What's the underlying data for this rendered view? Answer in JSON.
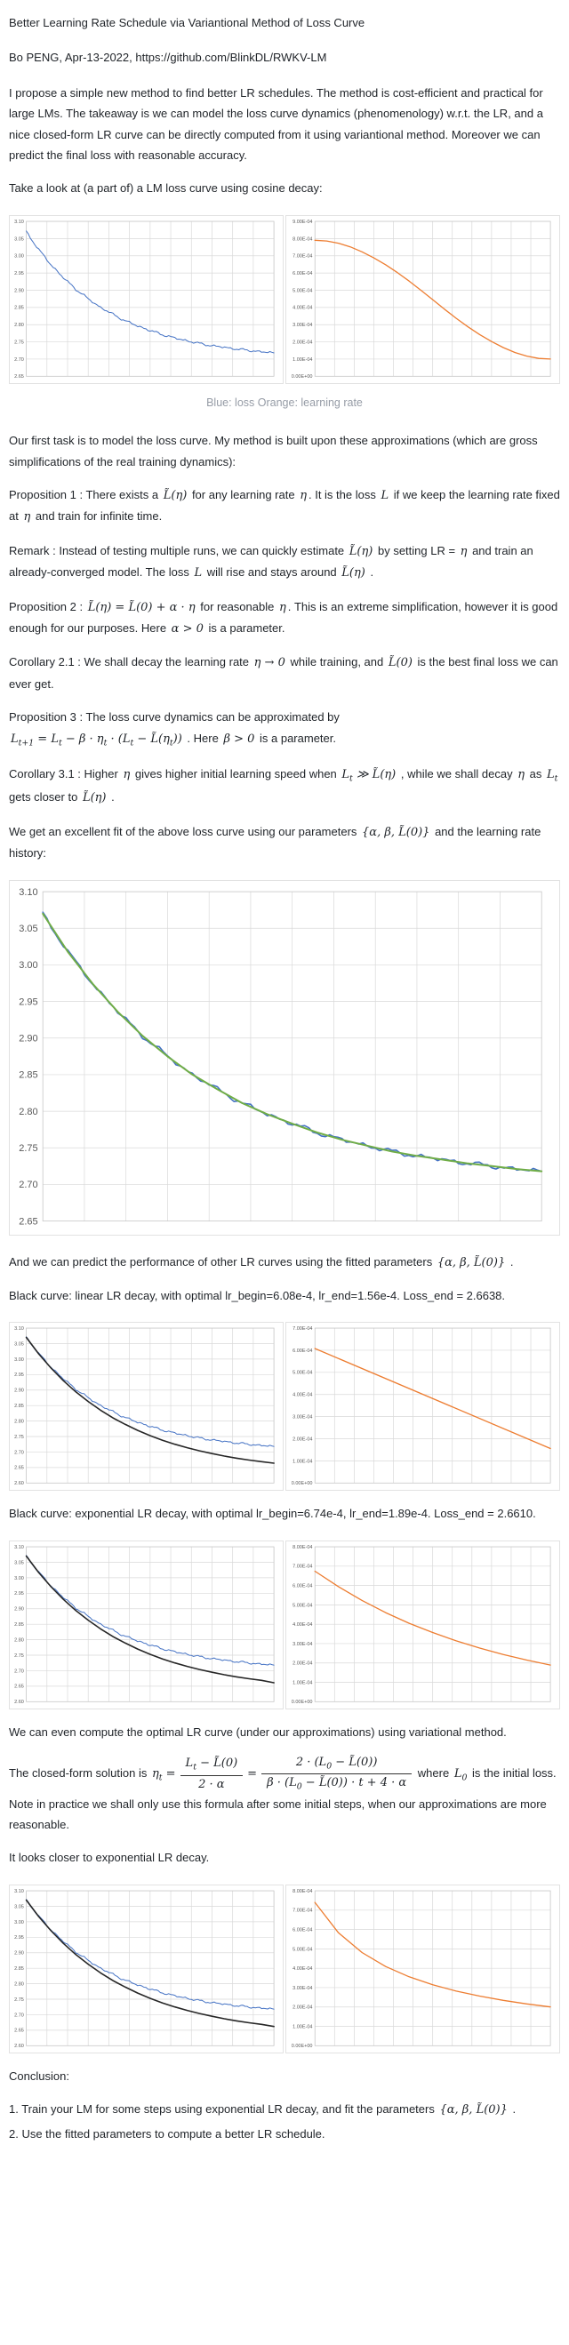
{
  "title": "Better Learning Rate Schedule via Variantional Method of Loss Curve",
  "byline": "Bo PENG, Apr-13-2022, https://github.com/BlinkDL/RWKV-LM",
  "caption": "Blue: loss Orange: learning rate",
  "paragraphs": {
    "intro": "I propose a simple new method to find better LR schedules. The method is cost-efficient and practical for large LMs. The takeaway is we can model the loss curve dynamics (phenomenology) w.r.t. the LR, and a nice closed-form LR curve can be directly computed from it using variantional method. Moreover we can predict the final loss with reasonable accuracy.",
    "take_look": "Take a look at (a part of) a LM loss curve using cosine decay:",
    "first_task": "Our first task is to model the loss curve. My method is built upon these approximations (which are gross simplifications of the real training dynamics):",
    "black_linear": "Black curve: linear LR decay, with optimal lr_begin=6.08e-4, lr_end=1.56e-4. Loss_end = 2.6638.",
    "black_exponential": "Black curve: exponential LR decay, with optimal lr_begin=6.74e-4, lr_end=1.89e-4. Loss_end = 2.6610.",
    "variational": "We can even compute the optimal LR curve (under our approximations) using variational method.",
    "closer": "It looks closer to exponential LR decay.",
    "conclusion_heading": "Conclusion:",
    "conclusion_2": "2. Use the fitted parameters to compute a better LR schedule."
  },
  "rich": {
    "prop1": [
      {
        "t": "Proposition 1 : There exists a "
      },
      {
        "m": "L̃(η)"
      },
      {
        "t": " for any learning rate "
      },
      {
        "m": "η"
      },
      {
        "t": ". It is the loss "
      },
      {
        "m": "L"
      },
      {
        "t": " if we keep the learning rate fixed at "
      },
      {
        "m": "η"
      },
      {
        "t": " and train for infinite time."
      }
    ],
    "remark": [
      {
        "t": "Remark : Instead of testing multiple runs, we can quickly estimate "
      },
      {
        "m": "L̃(η)"
      },
      {
        "t": " by setting LR = "
      },
      {
        "m": "η"
      },
      {
        "t": " and train an already-converged model. The loss "
      },
      {
        "m": "L"
      },
      {
        "t": " will rise and stays around "
      },
      {
        "m": "L̃(η)"
      },
      {
        "t": " ."
      }
    ],
    "prop2": [
      {
        "t": "Proposition 2 : "
      },
      {
        "m": "L̃(η) = L̃(0) + α · η"
      },
      {
        "t": " for reasonable "
      },
      {
        "m": "η"
      },
      {
        "t": ". This is an extreme simplification, however it is good enough for our purposes. Here "
      },
      {
        "m": "α > 0"
      },
      {
        "t": " is a parameter."
      }
    ],
    "cor21": [
      {
        "t": "Corollary 2.1 : We shall decay the learning rate "
      },
      {
        "m": "η → 0"
      },
      {
        "t": " while training, and "
      },
      {
        "m": "L̃(0)"
      },
      {
        "t": " is the best final loss we can ever get."
      }
    ],
    "prop3": [
      {
        "t": "Proposition 3 : The loss curve dynamics can be approximated by"
      },
      {
        "br": true
      },
      {
        "m": "L_{t+1} = L_{t} − β · η_{t} · (L_{t} − L̃(η_{t}))"
      },
      {
        "t": " . Here "
      },
      {
        "m": "β > 0"
      },
      {
        "t": " is a parameter."
      }
    ],
    "cor31": [
      {
        "t": "Corollary 3.1 : Higher "
      },
      {
        "m": "η"
      },
      {
        "t": " gives higher initial learning speed when "
      },
      {
        "m": "L_{t} ≫ L̃(η)"
      },
      {
        "t": " , while we shall decay "
      },
      {
        "m": "η"
      },
      {
        "t": " as "
      },
      {
        "m": "L_{t}"
      },
      {
        "t": " gets closer to "
      },
      {
        "m": "L̃(η)"
      },
      {
        "t": " ."
      }
    ],
    "fit_intro": [
      {
        "t": "We get an excellent fit of the above loss curve using our parameters "
      },
      {
        "m": "{α, β, L̃(0)}"
      },
      {
        "t": " and the learning rate history:"
      }
    ],
    "predict": [
      {
        "t": "And we can predict the performance of other LR curves using the fitted parameters "
      },
      {
        "m": "{α, β, L̃(0)}"
      },
      {
        "t": " ."
      }
    ],
    "closed_form": [
      {
        "t": "The closed-form solution is "
      },
      {
        "m": "η_{t} ="
      },
      {
        "frac": {
          "num": "L_{t} − L̃(0)",
          "den": "2 · α"
        }
      },
      {
        "m": "="
      },
      {
        "frac": {
          "num": "2 · (L_{0} − L̃(0))",
          "den": "β · (L_{0} − L̃(0)) · t + 4 · α"
        }
      },
      {
        "t": " where "
      },
      {
        "m": "L_{0}"
      },
      {
        "t": " is the initial loss. Note in practice we shall only use this formula after some initial steps, when our approximations are more reasonable."
      }
    ],
    "conclusion_1": [
      {
        "t": "1. Train your LM for some steps using exponential LR decay, and fit the parameters "
      },
      {
        "m": "{α, β, L̃(0)}"
      },
      {
        "t": " ."
      }
    ]
  },
  "colors": {
    "loss_blue": "#4472c4",
    "lr_orange": "#ed7d31",
    "fit_green": "#70ad47",
    "optimal_black": "#262626",
    "grid": "#d9d9d9",
    "axis_label": "#595959"
  },
  "chart_data": [
    {
      "name": "loss-cosine-decay",
      "type": "line",
      "ymin": 2.65,
      "ymax": 3.1,
      "xcols": 12,
      "yticks": [
        "3.10",
        "3.05",
        "3.00",
        "2.95",
        "2.90",
        "2.85",
        "2.80",
        "2.75",
        "2.70",
        "2.65"
      ],
      "series": [
        {
          "name": "loss",
          "color": "#4472c4",
          "width": 1,
          "noise": 0.004,
          "values": [
            3.07,
            3.018,
            2.974,
            2.936,
            2.903,
            2.875,
            2.85,
            2.83,
            2.811,
            2.796,
            2.783,
            2.771,
            2.761,
            2.753,
            2.745,
            2.739,
            2.734,
            2.729,
            2.725,
            2.721,
            2.718
          ]
        }
      ]
    },
    {
      "name": "learning-rate-cosine-decay",
      "type": "line",
      "ymin": 0,
      "ymax": 9,
      "xcols": 12,
      "yticks": [
        "9.00E-04",
        "8.00E-04",
        "7.00E-04",
        "6.00E-04",
        "5.00E-04",
        "4.00E-04",
        "3.00E-04",
        "2.00E-04",
        "1.00E-04",
        "0.00E+00"
      ],
      "series": [
        {
          "name": "learning-rate",
          "color": "#ed7d31",
          "width": 1.3,
          "values": [
            7.9,
            7.86,
            7.73,
            7.52,
            7.23,
            6.88,
            6.48,
            6.03,
            5.53,
            5.0,
            4.45,
            3.9,
            3.37,
            2.87,
            2.42,
            2.02,
            1.67,
            1.38,
            1.17,
            1.04,
            1.0
          ]
        }
      ]
    },
    {
      "name": "loss-fit",
      "type": "line",
      "ymin": 2.65,
      "ymax": 3.1,
      "xcols": 12,
      "yticks": [
        "3.10",
        "3.05",
        "3.00",
        "2.95",
        "2.90",
        "2.85",
        "2.80",
        "2.75",
        "2.70",
        "2.65"
      ],
      "series": [
        {
          "name": "loss",
          "color": "#4472c4",
          "width": 1.6,
          "noise": 0.004,
          "values": [
            3.07,
            3.018,
            2.974,
            2.936,
            2.903,
            2.875,
            2.85,
            2.83,
            2.811,
            2.796,
            2.783,
            2.771,
            2.761,
            2.753,
            2.745,
            2.739,
            2.734,
            2.729,
            2.725,
            2.721,
            2.718
          ]
        },
        {
          "name": "fitted-model",
          "color": "#70ad47",
          "width": 2,
          "values": [
            3.07,
            3.018,
            2.974,
            2.936,
            2.903,
            2.875,
            2.85,
            2.83,
            2.811,
            2.796,
            2.783,
            2.771,
            2.761,
            2.753,
            2.745,
            2.739,
            2.734,
            2.729,
            2.725,
            2.721,
            2.718
          ]
        }
      ]
    },
    {
      "name": "loss-linear-decay",
      "type": "line",
      "ymin": 2.6,
      "ymax": 3.1,
      "xcols": 12,
      "yticks": [
        "3.10",
        "3.05",
        "3.00",
        "2.95",
        "2.90",
        "2.85",
        "2.80",
        "2.75",
        "2.70",
        "2.65",
        "2.60"
      ],
      "series": [
        {
          "name": "loss-cosine-reference",
          "color": "#4472c4",
          "width": 1,
          "noise": 0.004,
          "values": [
            3.07,
            3.018,
            2.974,
            2.936,
            2.903,
            2.875,
            2.85,
            2.83,
            2.811,
            2.796,
            2.783,
            2.771,
            2.761,
            2.753,
            2.745,
            2.739,
            2.734,
            2.729,
            2.725,
            2.721,
            2.718
          ]
        },
        {
          "name": "predicted-loss-linear",
          "color": "#262626",
          "width": 1.6,
          "values": [
            3.07,
            3.017,
            2.971,
            2.93,
            2.894,
            2.863,
            2.835,
            2.81,
            2.789,
            2.77,
            2.753,
            2.738,
            2.725,
            2.714,
            2.704,
            2.695,
            2.687,
            2.68,
            2.674,
            2.669,
            2.664
          ]
        }
      ]
    },
    {
      "name": "learning-rate-linear-decay",
      "type": "line",
      "ymin": 0,
      "ymax": 7,
      "xcols": 12,
      "yticks": [
        "7.00E-04",
        "6.00E-04",
        "5.00E-04",
        "4.00E-04",
        "3.00E-04",
        "2.00E-04",
        "1.00E-04",
        "0.00E+00"
      ],
      "series": [
        {
          "name": "learning-rate",
          "color": "#ed7d31",
          "width": 1.3,
          "values": [
            6.08,
            1.56
          ]
        }
      ]
    },
    {
      "name": "loss-exponential-decay",
      "type": "line",
      "ymin": 2.6,
      "ymax": 3.1,
      "xcols": 12,
      "yticks": [
        "3.10",
        "3.05",
        "3.00",
        "2.95",
        "2.90",
        "2.85",
        "2.80",
        "2.75",
        "2.70",
        "2.65",
        "2.60"
      ],
      "series": [
        {
          "name": "loss-cosine-reference",
          "color": "#4472c4",
          "width": 1,
          "noise": 0.004,
          "values": [
            3.07,
            3.018,
            2.974,
            2.936,
            2.903,
            2.875,
            2.85,
            2.83,
            2.811,
            2.796,
            2.783,
            2.771,
            2.761,
            2.753,
            2.745,
            2.739,
            2.734,
            2.729,
            2.725,
            2.721,
            2.718
          ]
        },
        {
          "name": "predicted-loss-exponential",
          "color": "#262626",
          "width": 1.6,
          "values": [
            3.07,
            3.017,
            2.971,
            2.93,
            2.894,
            2.863,
            2.835,
            2.81,
            2.789,
            2.77,
            2.753,
            2.738,
            2.725,
            2.714,
            2.704,
            2.695,
            2.687,
            2.68,
            2.674,
            2.669,
            2.661
          ]
        }
      ]
    },
    {
      "name": "learning-rate-exponential-decay",
      "type": "line",
      "ymin": 0,
      "ymax": 8,
      "xcols": 12,
      "yticks": [
        "8.00E-04",
        "7.00E-04",
        "6.00E-04",
        "5.00E-04",
        "4.00E-04",
        "3.00E-04",
        "2.00E-04",
        "1.00E-04",
        "0.00E+00"
      ],
      "series": [
        {
          "name": "learning-rate",
          "color": "#ed7d31",
          "width": 1.3,
          "values": [
            6.74,
            5.94,
            5.23,
            4.6,
            4.05,
            3.57,
            3.14,
            2.77,
            2.44,
            2.15,
            1.89
          ]
        }
      ]
    },
    {
      "name": "loss-variational-optimal",
      "type": "line",
      "ymin": 2.6,
      "ymax": 3.1,
      "xcols": 12,
      "yticks": [
        "3.10",
        "3.05",
        "3.00",
        "2.95",
        "2.90",
        "2.85",
        "2.80",
        "2.75",
        "2.70",
        "2.65",
        "2.60"
      ],
      "series": [
        {
          "name": "loss-cosine-reference",
          "color": "#4472c4",
          "width": 1,
          "noise": 0.004,
          "values": [
            3.07,
            3.018,
            2.974,
            2.936,
            2.903,
            2.875,
            2.85,
            2.83,
            2.811,
            2.796,
            2.783,
            2.771,
            2.761,
            2.753,
            2.745,
            2.739,
            2.734,
            2.729,
            2.725,
            2.721,
            2.718
          ]
        },
        {
          "name": "predicted-loss-optimal",
          "color": "#262626",
          "width": 1.6,
          "values": [
            3.07,
            3.017,
            2.971,
            2.93,
            2.894,
            2.863,
            2.835,
            2.81,
            2.789,
            2.77,
            2.753,
            2.738,
            2.725,
            2.714,
            2.704,
            2.695,
            2.687,
            2.68,
            2.674,
            2.669,
            2.662
          ]
        }
      ]
    },
    {
      "name": "learning-rate-variational-optimal",
      "type": "line",
      "ymin": 0,
      "ymax": 8,
      "xcols": 12,
      "yticks": [
        "8.00E-04",
        "7.00E-04",
        "6.00E-04",
        "5.00E-04",
        "4.00E-04",
        "3.00E-04",
        "2.00E-04",
        "1.00E-04",
        "0.00E+00"
      ],
      "series": [
        {
          "name": "learning-rate",
          "color": "#ed7d31",
          "width": 1.3,
          "values": [
            7.4,
            5.83,
            4.81,
            4.09,
            3.56,
            3.15,
            2.82,
            2.56,
            2.34,
            2.16,
            2.0
          ]
        }
      ]
    }
  ]
}
